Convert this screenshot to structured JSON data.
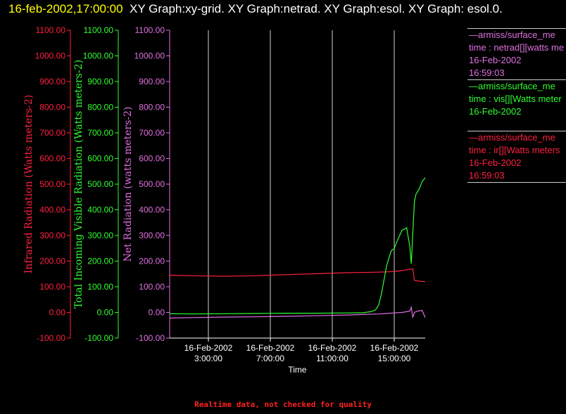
{
  "header": {
    "timestamp": "16-feb-2002,17:00:00",
    "graphs": "XY Graph:xy-grid.  XY Graph:netrad.  XY Graph:esol.  XY Graph: esol.0."
  },
  "legend": [
    {
      "name": "—armiss/surface_me",
      "var": "time : netrad[][watts me",
      "date": "16-Feb-2002",
      "time": "16:59:03",
      "color": "#e070e0"
    },
    {
      "name": "—armiss/surface_me",
      "var": "time : vis[][Watts meter",
      "date": "16-Feb-2002",
      "time": "",
      "color": "#30ff30"
    },
    {
      "name": "—armiss/surface_me",
      "var": "time : ir[][Watts meters",
      "date": "16-Feb-2002",
      "time": "16:59:03",
      "color": "#ff2040"
    }
  ],
  "footer": "Realtime data, not checked for quality",
  "chart_data": {
    "type": "line",
    "xlabel": "Time",
    "x_ticks": [
      {
        "t": 3,
        "date": "16-Feb-2002",
        "time": "3:00:00"
      },
      {
        "t": 7,
        "date": "16-Feb-2002",
        "time": "7:00:00"
      },
      {
        "t": 11,
        "date": "16-Feb-2002",
        "time": "11:00:00"
      },
      {
        "t": 15,
        "date": "16-Feb-2002",
        "time": "15:00:00"
      }
    ],
    "x_range_hours": [
      0.5,
      17.0
    ],
    "grid": "vertical",
    "y_axes": [
      {
        "label": "Infrared Radiation (Watts meters-2)",
        "color": "#ff2040",
        "ylim": [
          -100,
          1100
        ],
        "ticks": [
          "-100.00",
          "0.00",
          "100.00",
          "200.00",
          "300.00",
          "400.00",
          "500.00",
          "600.00",
          "700.00",
          "800.00",
          "900.00",
          "1000.00",
          "1100.00"
        ]
      },
      {
        "label": "Total Incoming Visible Radiation (Watts meters-2)",
        "color": "#30ff30",
        "ylim": [
          -100,
          1100
        ],
        "ticks": [
          "-100.00",
          "0.00",
          "100.00",
          "200.00",
          "300.00",
          "400.00",
          "500.00",
          "600.00",
          "700.00",
          "800.00",
          "900.00",
          "1000.00",
          "1100.00"
        ]
      },
      {
        "label": "Net Radiation (watts meters-2)",
        "color": "#e070e0",
        "ylim": [
          -100,
          1100
        ],
        "ticks": [
          "-100.00",
          "0.00",
          "100.00",
          "200.00",
          "300.00",
          "400.00",
          "500.00",
          "600.00",
          "700.00",
          "800.00",
          "900.00",
          "1000.00",
          "1100.00"
        ]
      }
    ],
    "series": [
      {
        "name": "ir",
        "color": "#ff2040",
        "x": [
          0.5,
          2,
          4,
          6,
          8,
          10,
          12,
          13,
          14,
          14.5,
          15,
          15.5,
          16,
          16.2,
          16.3,
          16.6,
          17
        ],
        "y": [
          145,
          143,
          141,
          143,
          147,
          151,
          155,
          156,
          157,
          158,
          160,
          163,
          168,
          170,
          125,
          122,
          120
        ]
      },
      {
        "name": "vis",
        "color": "#30ff30",
        "x": [
          0.5,
          2,
          4,
          6,
          8,
          10,
          12,
          13,
          13.5,
          13.8,
          14,
          14.2,
          14.5,
          14.8,
          15,
          15.2,
          15.5,
          15.8,
          16,
          16.1,
          16.2,
          16.3,
          16.4,
          16.6,
          16.8,
          17
        ],
        "y": [
          -5,
          -6,
          -5,
          -4,
          -3,
          -3,
          -2,
          -1,
          3,
          10,
          30,
          80,
          180,
          240,
          250,
          280,
          320,
          330,
          260,
          190,
          310,
          430,
          460,
          480,
          510,
          525
        ]
      },
      {
        "name": "netrad",
        "color": "#e070e0",
        "x": [
          0.5,
          2,
          4,
          6,
          8,
          10,
          12,
          13,
          14,
          14.5,
          15,
          15.5,
          16,
          16.1,
          16.2,
          16.3,
          16.5,
          16.8,
          17
        ],
        "y": [
          -22,
          -20,
          -18,
          -17,
          -15,
          -13,
          -10,
          -8,
          -6,
          -4,
          -2,
          0,
          5,
          20,
          -20,
          0,
          5,
          8,
          -20
        ]
      }
    ]
  }
}
